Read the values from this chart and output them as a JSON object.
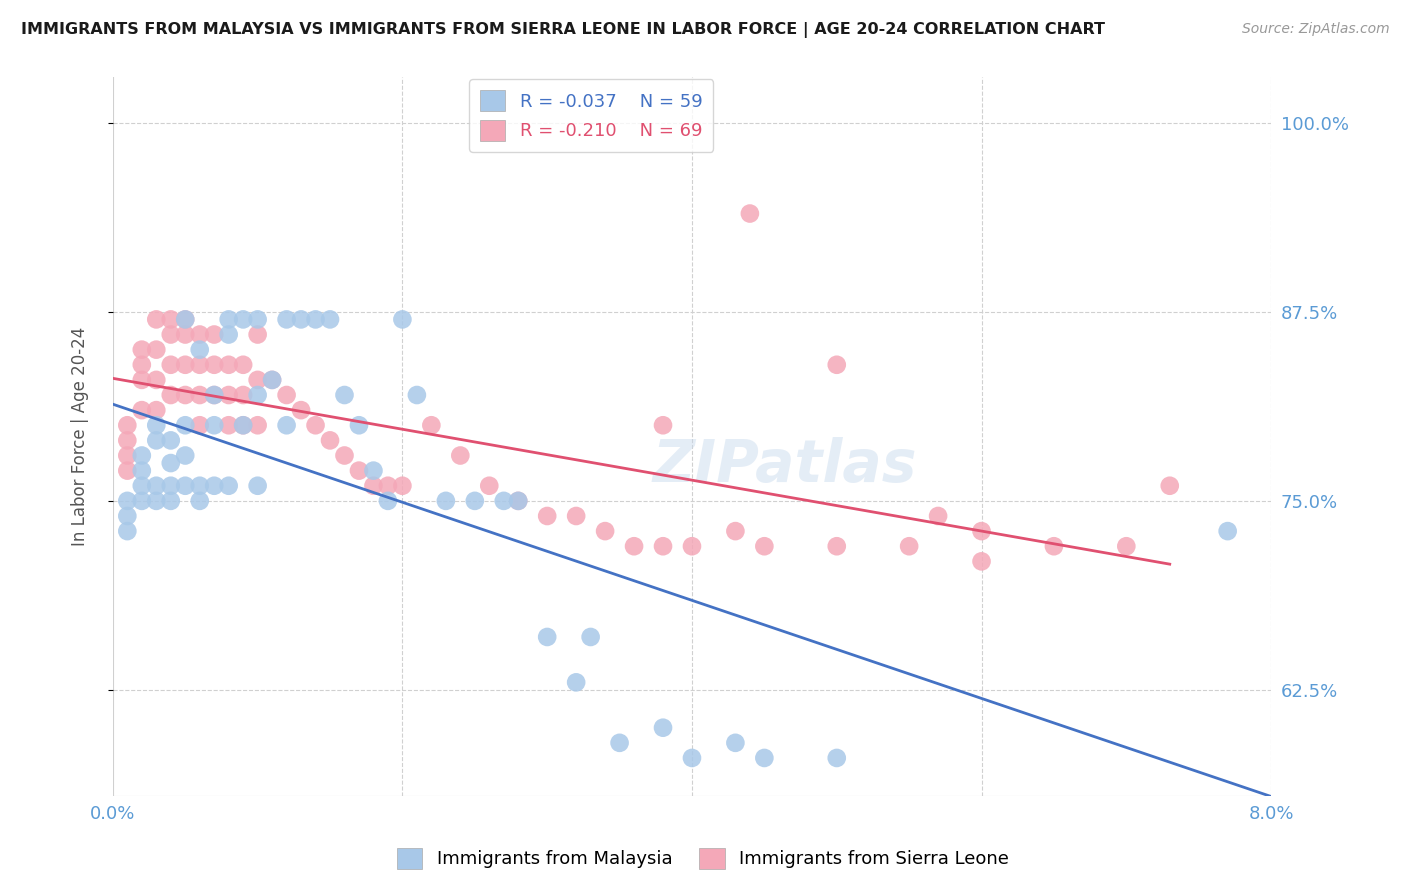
{
  "title": "IMMIGRANTS FROM MALAYSIA VS IMMIGRANTS FROM SIERRA LEONE IN LABOR FORCE | AGE 20-24 CORRELATION CHART",
  "source": "Source: ZipAtlas.com",
  "ylabel": "In Labor Force | Age 20-24",
  "xlim": [
    0.0,
    0.08
  ],
  "ylim": [
    0.555,
    1.03
  ],
  "yticks": [
    0.625,
    0.75,
    0.875,
    1.0
  ],
  "ytick_labels": [
    "62.5%",
    "75.0%",
    "87.5%",
    "100.0%"
  ],
  "xticks": [
    0.0,
    0.02,
    0.04,
    0.06,
    0.08
  ],
  "xtick_labels": [
    "0.0%",
    "",
    "",
    "",
    "8.0%"
  ],
  "malaysia_R": -0.037,
  "malaysia_N": 59,
  "sierraleone_R": -0.21,
  "sierraleone_N": 69,
  "malaysia_color": "#a8c8e8",
  "sierraleone_color": "#f4a8b8",
  "malaysia_line_color": "#4472c4",
  "sierraleone_line_color": "#e05070",
  "legend_label_malaysia": "Immigrants from Malaysia",
  "legend_label_sierraleone": "Immigrants from Sierra Leone",
  "watermark": "ZIPatlas",
  "background_color": "#ffffff",
  "grid_color": "#d0d0d0",
  "axis_color": "#5b9bd5",
  "malaysia_x": [
    0.001,
    0.001,
    0.001,
    0.002,
    0.002,
    0.002,
    0.002,
    0.003,
    0.003,
    0.003,
    0.003,
    0.004,
    0.004,
    0.004,
    0.004,
    0.005,
    0.005,
    0.005,
    0.005,
    0.006,
    0.006,
    0.006,
    0.007,
    0.007,
    0.007,
    0.008,
    0.008,
    0.008,
    0.009,
    0.009,
    0.01,
    0.01,
    0.01,
    0.011,
    0.012,
    0.012,
    0.013,
    0.014,
    0.015,
    0.016,
    0.017,
    0.018,
    0.019,
    0.02,
    0.021,
    0.023,
    0.025,
    0.027,
    0.028,
    0.03,
    0.032,
    0.033,
    0.035,
    0.038,
    0.04,
    0.043,
    0.045,
    0.05,
    0.077
  ],
  "malaysia_y": [
    0.75,
    0.74,
    0.73,
    0.78,
    0.77,
    0.76,
    0.75,
    0.8,
    0.79,
    0.76,
    0.75,
    0.79,
    0.775,
    0.76,
    0.75,
    0.87,
    0.8,
    0.78,
    0.76,
    0.85,
    0.76,
    0.75,
    0.82,
    0.8,
    0.76,
    0.87,
    0.86,
    0.76,
    0.87,
    0.8,
    0.87,
    0.82,
    0.76,
    0.83,
    0.87,
    0.8,
    0.87,
    0.87,
    0.87,
    0.82,
    0.8,
    0.77,
    0.75,
    0.87,
    0.82,
    0.75,
    0.75,
    0.75,
    0.75,
    0.66,
    0.63,
    0.66,
    0.59,
    0.6,
    0.58,
    0.59,
    0.58,
    0.58,
    0.73
  ],
  "sierraleone_x": [
    0.001,
    0.001,
    0.001,
    0.001,
    0.002,
    0.002,
    0.002,
    0.002,
    0.003,
    0.003,
    0.003,
    0.003,
    0.004,
    0.004,
    0.004,
    0.004,
    0.005,
    0.005,
    0.005,
    0.005,
    0.006,
    0.006,
    0.006,
    0.006,
    0.007,
    0.007,
    0.007,
    0.008,
    0.008,
    0.008,
    0.009,
    0.009,
    0.009,
    0.01,
    0.01,
    0.01,
    0.011,
    0.012,
    0.013,
    0.014,
    0.015,
    0.016,
    0.017,
    0.018,
    0.019,
    0.02,
    0.022,
    0.024,
    0.026,
    0.028,
    0.03,
    0.032,
    0.034,
    0.036,
    0.038,
    0.04,
    0.043,
    0.045,
    0.05,
    0.055,
    0.057,
    0.06,
    0.065,
    0.044,
    0.073,
    0.06,
    0.038,
    0.05,
    0.07
  ],
  "sierraleone_y": [
    0.8,
    0.79,
    0.78,
    0.77,
    0.85,
    0.84,
    0.83,
    0.81,
    0.87,
    0.85,
    0.83,
    0.81,
    0.87,
    0.86,
    0.84,
    0.82,
    0.87,
    0.86,
    0.84,
    0.82,
    0.86,
    0.84,
    0.82,
    0.8,
    0.86,
    0.84,
    0.82,
    0.84,
    0.82,
    0.8,
    0.84,
    0.82,
    0.8,
    0.86,
    0.83,
    0.8,
    0.83,
    0.82,
    0.81,
    0.8,
    0.79,
    0.78,
    0.77,
    0.76,
    0.76,
    0.76,
    0.8,
    0.78,
    0.76,
    0.75,
    0.74,
    0.74,
    0.73,
    0.72,
    0.72,
    0.72,
    0.73,
    0.72,
    0.72,
    0.72,
    0.74,
    0.73,
    0.72,
    0.94,
    0.76,
    0.71,
    0.8,
    0.84,
    0.72
  ]
}
